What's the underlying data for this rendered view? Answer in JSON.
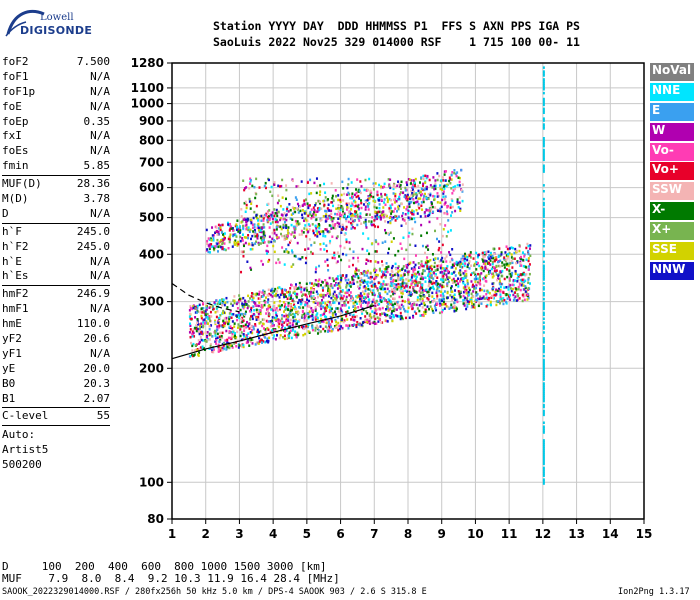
{
  "logo": {
    "top": "Lowell",
    "bottom": "DIGISONDE"
  },
  "header": {
    "line1": "Station YYYY DAY  DDD HHMMSS P1  FFS S AXN PPS IGA PS",
    "line2": "SaoLuis 2022 Nov25 329 014000 RSF    1 715 100 00- 11"
  },
  "parameters": {
    "group1": [
      {
        "name": "foF2",
        "value": "7.500"
      },
      {
        "name": "foF1",
        "value": "N/A"
      },
      {
        "name": "foF1p",
        "value": "N/A"
      },
      {
        "name": "foE",
        "value": "N/A"
      },
      {
        "name": "foEp",
        "value": "0.35"
      },
      {
        "name": "fxI",
        "value": "N/A"
      },
      {
        "name": "foEs",
        "value": "N/A"
      },
      {
        "name": "fmin",
        "value": "5.85"
      }
    ],
    "group2": [
      {
        "name": "MUF(D)",
        "value": "28.36"
      },
      {
        "name": "M(D)",
        "value": "3.78"
      },
      {
        "name": "D",
        "value": "N/A"
      }
    ],
    "group3": [
      {
        "name": "h`F",
        "value": "245.0"
      },
      {
        "name": "h`F2",
        "value": "245.0"
      },
      {
        "name": "h`E",
        "value": "N/A"
      },
      {
        "name": "h`Es",
        "value": "N/A"
      }
    ],
    "group4": [
      {
        "name": "hmF2",
        "value": "246.9"
      },
      {
        "name": "hmF1",
        "value": "N/A"
      },
      {
        "name": "hmE",
        "value": "110.0"
      },
      {
        "name": "yF2",
        "value": "20.6"
      },
      {
        "name": "yF1",
        "value": "N/A"
      },
      {
        "name": "yE",
        "value": "20.0"
      },
      {
        "name": "B0",
        "value": "20.3"
      },
      {
        "name": "B1",
        "value": "2.07"
      }
    ],
    "clevel": {
      "name": "C-level",
      "value": "55"
    },
    "auto": [
      "Auto:",
      "Artist5",
      "500200"
    ]
  },
  "legend": [
    {
      "label": "NoVal",
      "color": "#808080"
    },
    {
      "label": "NNE",
      "color": "#00e5ff"
    },
    {
      "label": "E",
      "color": "#3aa0f0"
    },
    {
      "label": "W",
      "color": "#b000b0"
    },
    {
      "label": "Vo-",
      "color": "#ff3cb4"
    },
    {
      "label": "Vo+",
      "color": "#e8002a"
    },
    {
      "label": "SSW",
      "color": "#f4b4b4"
    },
    {
      "label": "X-",
      "color": "#007a00"
    },
    {
      "label": "X+",
      "color": "#78b450"
    },
    {
      "label": "SSE",
      "color": "#d2d200"
    },
    {
      "label": "NNW",
      "color": "#1010c8"
    }
  ],
  "mufTable": {
    "dRow": "D     100  200  400  600  800 1000 1500 3000 [km]",
    "mufRow": "MUF    7.9  8.0  8.4  9.2 10.3 11.9 16.4 28.4 [MHz]"
  },
  "footer": {
    "left": "SAOOK_2022329014000.RSF / 280fx256h 50 kHz 5.0 km / DPS-4 SAOOK 903 / 2.6 S 315.8 E",
    "right": "Ion2Png 1.3.17"
  },
  "chart_data": {
    "type": "scatter",
    "title": "",
    "xlabel": "",
    "ylabel": "",
    "x_ticks": [
      1,
      2,
      3,
      4,
      5,
      6,
      7,
      8,
      9,
      10,
      11,
      12,
      13,
      14,
      15
    ],
    "y_ticks": [
      80,
      100,
      200,
      300,
      400,
      500,
      600,
      700,
      800,
      900,
      1000,
      1100,
      1280
    ],
    "xlim": [
      1,
      15
    ],
    "ylim": [
      80,
      1280
    ],
    "y_scale": "log",
    "grid": true,
    "legend_position": "right",
    "profile_curve": [
      [
        1.0,
        212
      ],
      [
        2.0,
        225
      ],
      [
        3.0,
        236
      ],
      [
        4.0,
        249
      ],
      [
        5.0,
        262
      ],
      [
        6.0,
        275
      ],
      [
        7.0,
        293
      ]
    ],
    "dashed_curve": [
      [
        1.0,
        335
      ],
      [
        1.5,
        312
      ],
      [
        2.0,
        298
      ],
      [
        2.5,
        288
      ],
      [
        3.0,
        282
      ]
    ],
    "marker_line_x": 12.0,
    "trace_regions": [
      {
        "name": "F-layer main trace",
        "x_range": [
          1.5,
          11.6
        ],
        "y_start": [
          215,
          245
        ],
        "y_end": [
          305,
          360
        ],
        "thickness": 1.2
      },
      {
        "name": "multihop trace",
        "x_range": [
          2.0,
          9.6
        ],
        "y_start": [
          405,
          430
        ],
        "y_end": [
          520,
          620
        ],
        "thickness": 1.1
      },
      {
        "name": "spread echoes",
        "x_range": [
          3.0,
          9.3
        ],
        "y_start": [
          360,
          640
        ],
        "y_end": [
          360,
          640
        ],
        "thickness": 1.0
      }
    ]
  }
}
